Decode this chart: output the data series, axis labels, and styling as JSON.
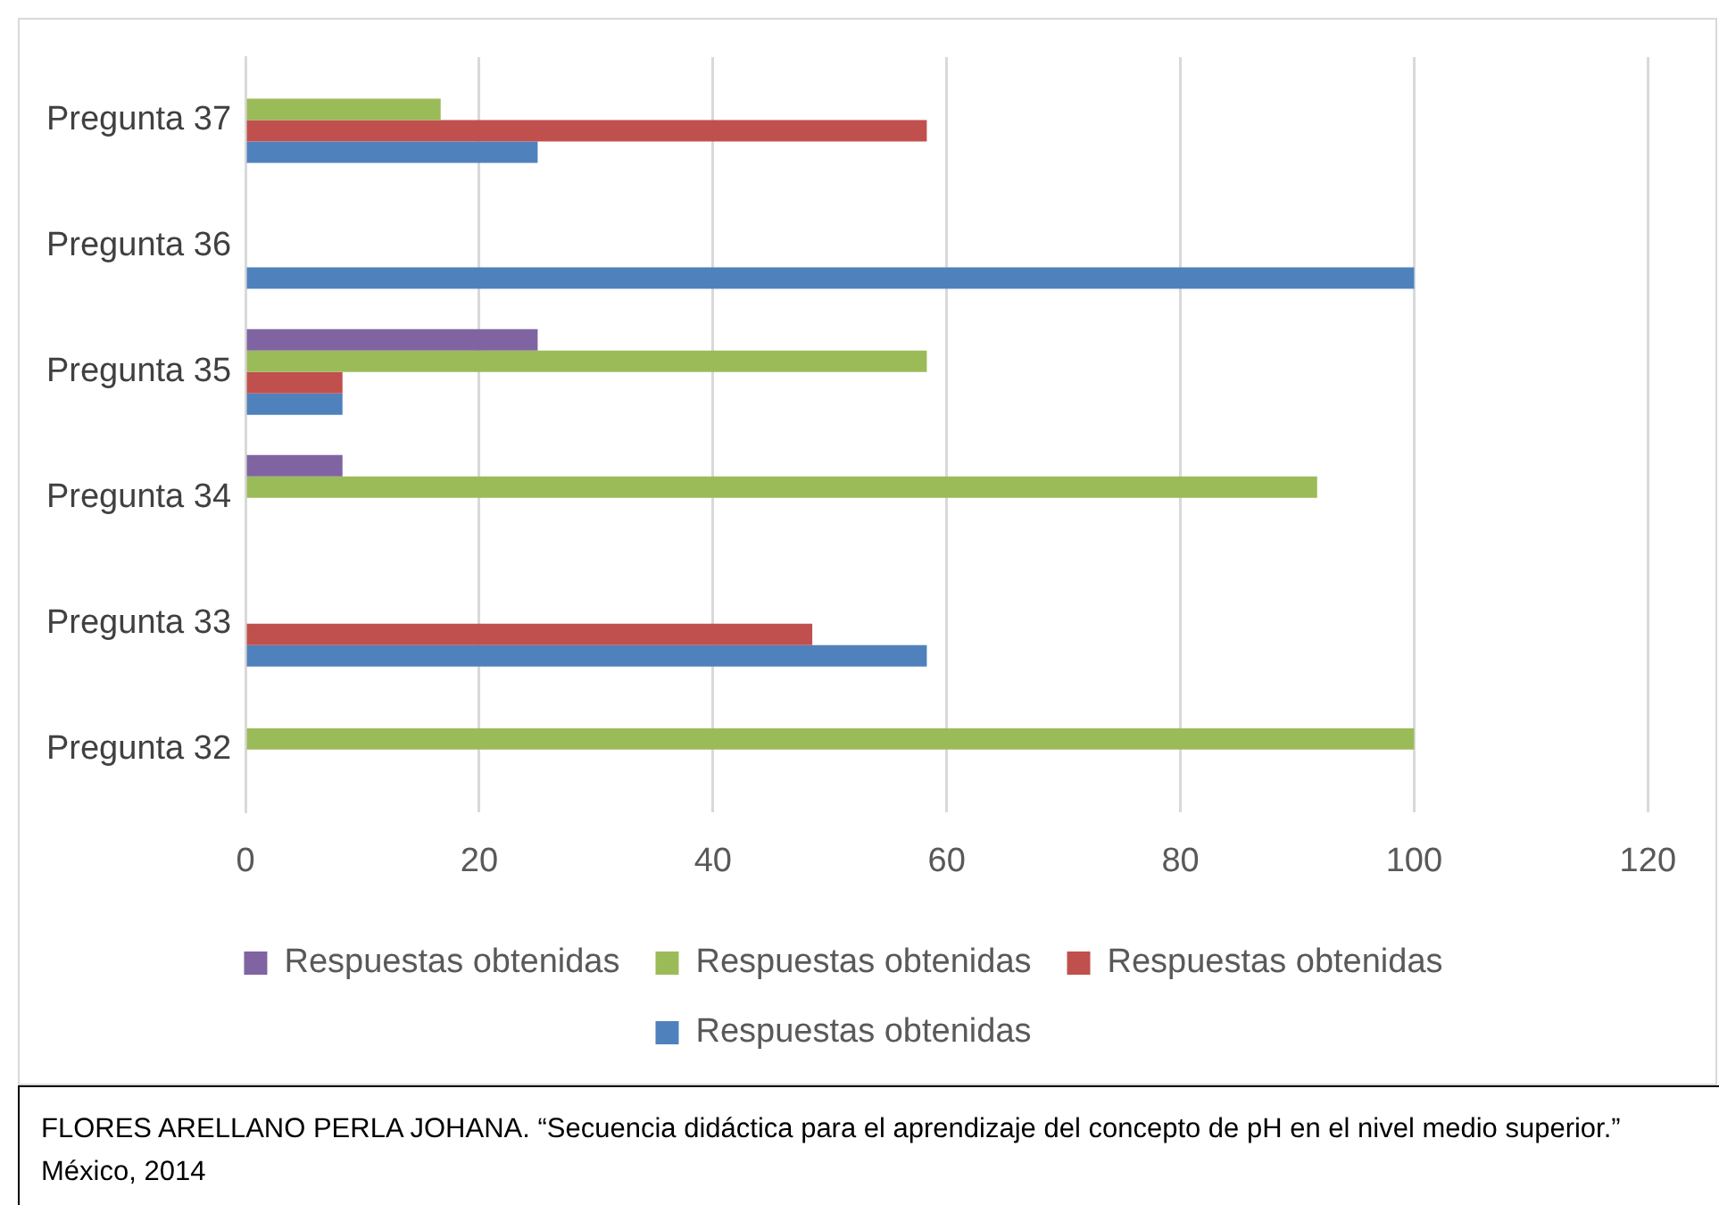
{
  "chart_data": {
    "type": "bar",
    "orientation": "horizontal",
    "categories": [
      "Pregunta 37",
      "Pregunta 36",
      "Pregunta 35",
      "Pregunta 34",
      "Pregunta 33",
      "Pregunta 32"
    ],
    "series": [
      {
        "name": "Respuestas obtenidas",
        "color": "#8064a2",
        "values": [
          null,
          null,
          25,
          8.3,
          null,
          null
        ]
      },
      {
        "name": "Respuestas obtenidas",
        "color": "#9bbb59",
        "values": [
          16.7,
          null,
          58.3,
          91.7,
          null,
          100
        ]
      },
      {
        "name": "Respuestas obtenidas",
        "color": "#c0504d",
        "values": [
          58.3,
          null,
          8.3,
          null,
          48.5,
          null
        ]
      },
      {
        "name": "Respuestas obtenidas",
        "color": "#4f81bd",
        "values": [
          25,
          100,
          8.3,
          null,
          58.3,
          null
        ]
      }
    ],
    "xlim": [
      0,
      120
    ],
    "xticks": [
      0,
      20,
      40,
      60,
      80,
      100,
      120
    ],
    "grid": "x",
    "legend": "bottom",
    "annotations": [
      "FLORES ARELLANO PERLA JOHANA. “Secuencia didáctica para el aprendizaje del concepto de pH en el nivel medio superior.” México, 2014"
    ]
  }
}
